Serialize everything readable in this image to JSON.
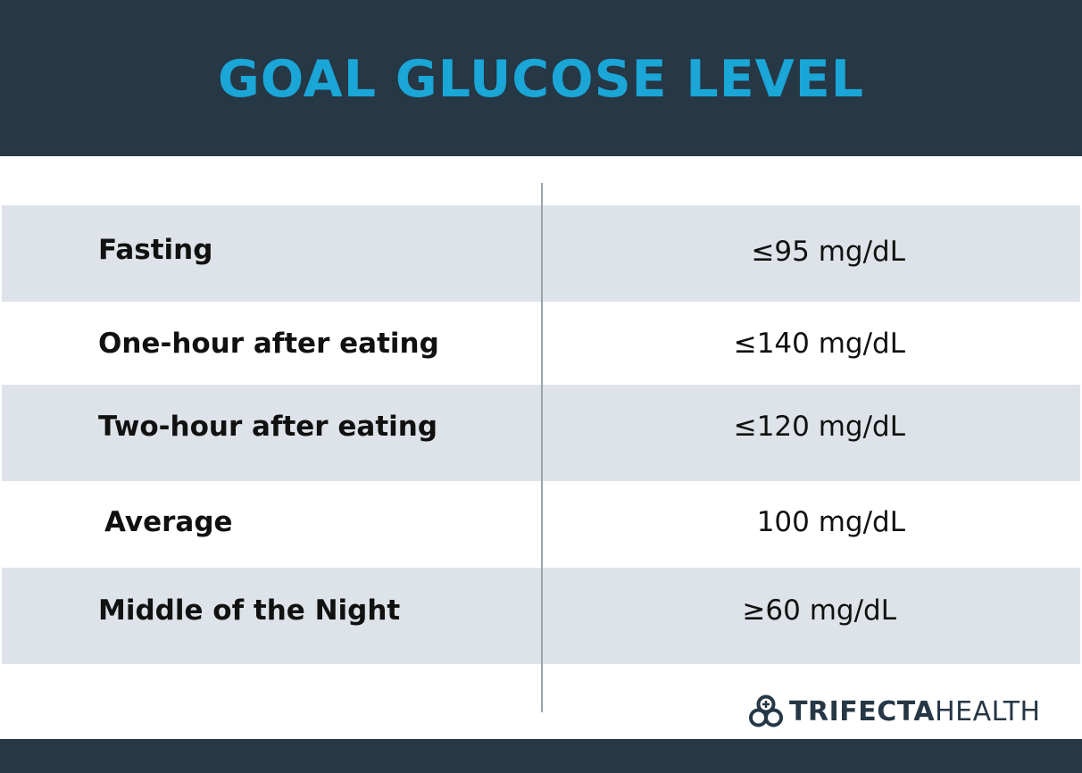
{
  "header": {
    "title": "GOAL GLUCOSE LEVEL"
  },
  "table": {
    "rows": [
      {
        "label": "Fasting",
        "value": "≤95 mg/dL",
        "shaded": true
      },
      {
        "label": "One-hour after eating",
        "value": "≤140 mg/dL",
        "shaded": false
      },
      {
        "label": "Two-hour after eating",
        "value": "≤120 mg/dL",
        "shaded": true
      },
      {
        "label": "Average",
        "value": "100 mg/dL",
        "shaded": false
      },
      {
        "label": "Middle of the Night",
        "value": "≥60 mg/dL",
        "shaded": true
      }
    ]
  },
  "logo": {
    "bold": "TRIFECTA",
    "light": "HEALTH",
    "icon": "trifecta-rings-icon"
  },
  "colors": {
    "header_bg": "#263746",
    "title": "#1aa6d6",
    "row_shade": "#dde3e8"
  }
}
